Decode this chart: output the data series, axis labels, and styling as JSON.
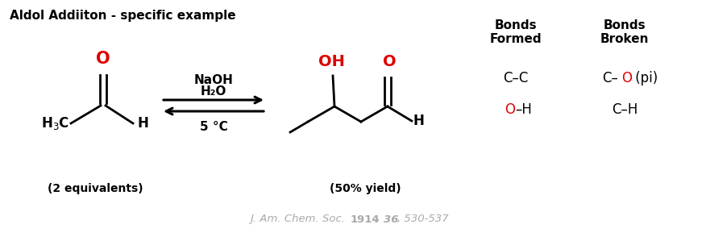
{
  "title": "Aldol Addiiton - specific example",
  "background_color": "#ffffff",
  "red_color": "#dd0000",
  "black_color": "#000000",
  "gray_color": "#aaaaaa",
  "reagents_above": "NaOH",
  "reagents_middle": "H₂O",
  "reagents_below": "5 °C",
  "reactant_label": "(2 equivalents)",
  "product_label": "(50% yield)",
  "citation_italic": "J. Am. Chem. Soc.",
  "citation_year": "1914",
  "citation_volume": "36",
  "citation_pages": "530-537"
}
